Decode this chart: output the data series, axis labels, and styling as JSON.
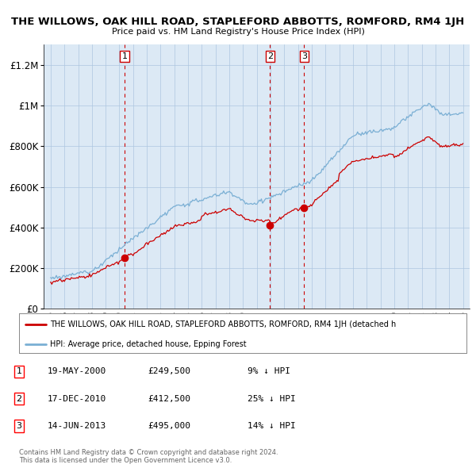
{
  "title": "THE WILLOWS, OAK HILL ROAD, STAPLEFORD ABBOTTS, ROMFORD, RM4 1JH",
  "subtitle": "Price paid vs. HM Land Registry's House Price Index (HPI)",
  "background_color": "#ffffff",
  "plot_bg_color": "#dce9f5",
  "grid_color": "#aec6e0",
  "sale_color": "#cc0000",
  "hpi_color": "#7aafd4",
  "marker_color": "#cc0000",
  "vline_color": "#cc0000",
  "ylim": [
    0,
    1300000
  ],
  "yticks": [
    0,
    200000,
    400000,
    600000,
    800000,
    1000000,
    1200000
  ],
  "ytick_labels": [
    "£0",
    "£200K",
    "£400K",
    "£600K",
    "£800K",
    "£1M",
    "£1.2M"
  ],
  "sales": [
    {
      "date_num": 2000.38,
      "price": 249500,
      "label": "1"
    },
    {
      "date_num": 2010.96,
      "price": 412500,
      "label": "2"
    },
    {
      "date_num": 2013.45,
      "price": 495000,
      "label": "3"
    }
  ],
  "vline_dates": [
    2000.38,
    2010.96,
    2013.45
  ],
  "sale_table": [
    {
      "num": "1",
      "date": "19-MAY-2000",
      "price": "£249,500",
      "rel": "9% ↓ HPI"
    },
    {
      "num": "2",
      "date": "17-DEC-2010",
      "price": "£412,500",
      "rel": "25% ↓ HPI"
    },
    {
      "num": "3",
      "date": "14-JUN-2013",
      "price": "£495,000",
      "rel": "14% ↓ HPI"
    }
  ],
  "legend_sale_label": "THE WILLOWS, OAK HILL ROAD, STAPLEFORD ABBOTTS, ROMFORD, RM4 1JH (detached h",
  "legend_hpi_label": "HPI: Average price, detached house, Epping Forest",
  "footer": "Contains HM Land Registry data © Crown copyright and database right 2024.\nThis data is licensed under the Open Government Licence v3.0.",
  "xlim": [
    1994.5,
    2025.5
  ]
}
